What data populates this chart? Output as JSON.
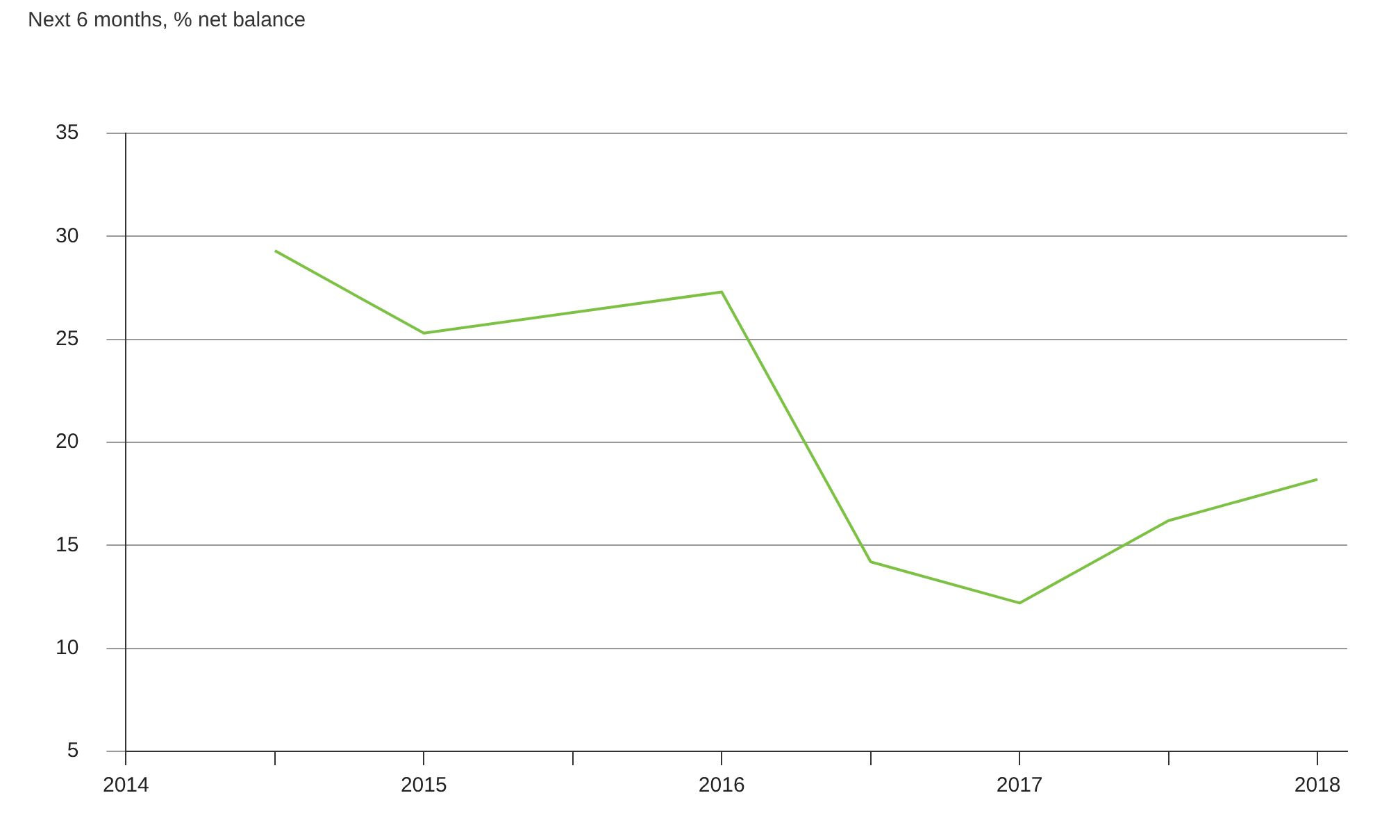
{
  "chart_data": {
    "type": "line",
    "title": "Next 6 months, % net balance",
    "x": [
      2014.5,
      2015,
      2016,
      2016.5,
      2017,
      2017.5,
      2018
    ],
    "series": [
      {
        "color": "#7cc144",
        "values": [
          29.3,
          25.3,
          27.3,
          14.2,
          12.2,
          16.2,
          18.2
        ]
      }
    ],
    "xlim": [
      2014,
      2018.1
    ],
    "xticks": [
      2014,
      {
        "value": 2014.5,
        "label": null
      },
      2015,
      {
        "value": 2015.5,
        "label": null
      },
      2016,
      {
        "value": 2016.5,
        "label": null
      },
      2017,
      {
        "value": 2017.5,
        "label": null
      },
      2018
    ],
    "ylim": [
      5,
      35
    ],
    "yticks": [
      5,
      10,
      15,
      20,
      25,
      30,
      35
    ],
    "grid": "y",
    "legend": false,
    "marker": "none",
    "line_style": "solid"
  }
}
